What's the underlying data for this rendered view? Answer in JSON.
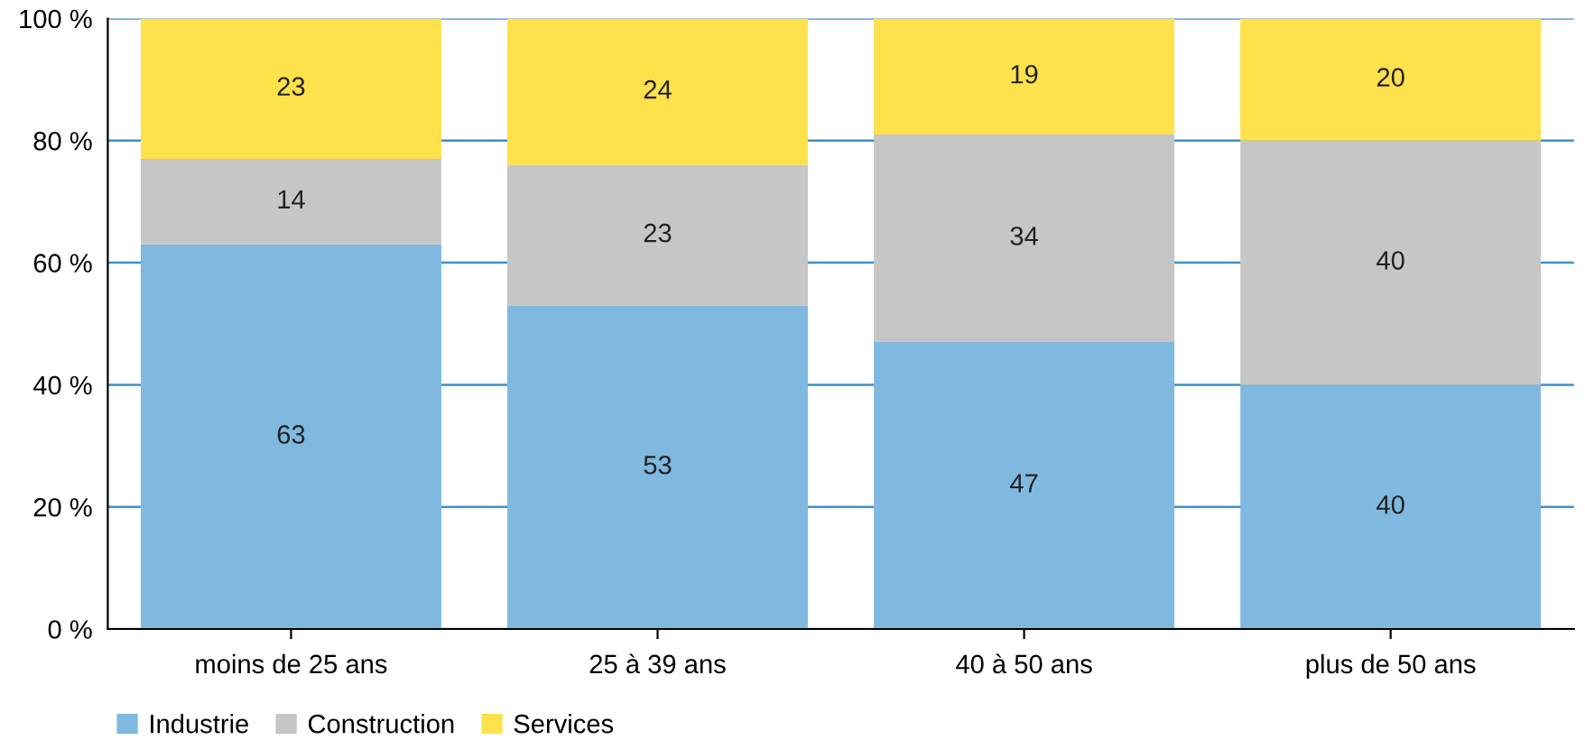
{
  "chart_data": {
    "type": "bar",
    "stacked": true,
    "categories": [
      "moins de 25 ans",
      "25 à 39 ans",
      "40 à 50 ans",
      "plus de 50 ans"
    ],
    "series": [
      {
        "name": "Industrie",
        "color": "#80b9e0",
        "values": [
          63,
          53,
          47,
          40
        ]
      },
      {
        "name": "Construction",
        "color": "#c6c6c6",
        "values": [
          14,
          23,
          34,
          40
        ]
      },
      {
        "name": "Services",
        "color": "#ffe14c",
        "values": [
          23,
          24,
          19,
          20
        ]
      }
    ],
    "ylim": [
      0,
      100
    ],
    "yticks": [
      {
        "value": 0,
        "label": "0 %"
      },
      {
        "value": 20,
        "label": "20 %"
      },
      {
        "value": 40,
        "label": "40 %"
      },
      {
        "value": 60,
        "label": "60 %"
      },
      {
        "value": 80,
        "label": "80 %"
      },
      {
        "value": 100,
        "label": "100 %"
      }
    ],
    "grid": "y",
    "legend": "bottom left",
    "data_labels": true
  }
}
